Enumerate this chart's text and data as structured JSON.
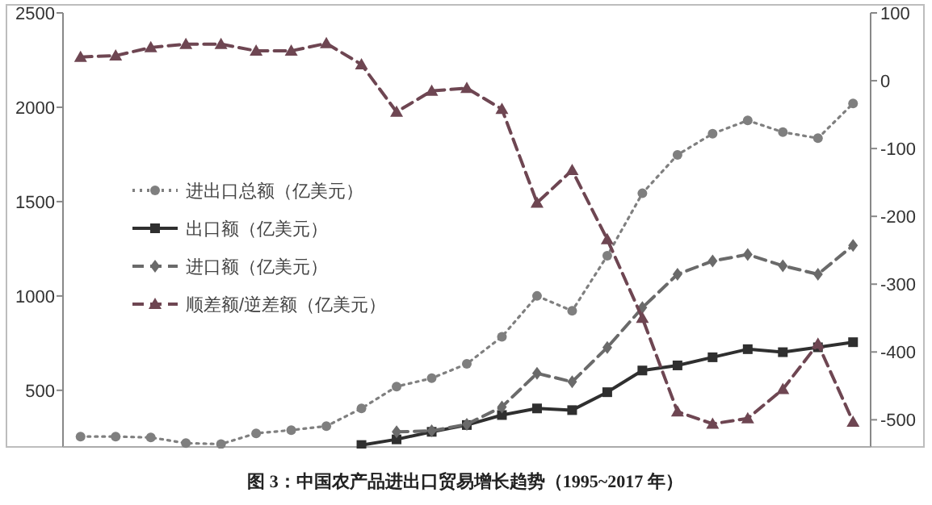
{
  "chart_data": {
    "type": "line",
    "title": "图 3：中国农产品进出口贸易增长趋势（1995~2017 年）",
    "categories": [
      null,
      null,
      null,
      null,
      null,
      null,
      null,
      null,
      null,
      null,
      null,
      null,
      null,
      null,
      null,
      null,
      null,
      null,
      null,
      null,
      null,
      null,
      null
    ],
    "ylim": [
      200,
      2500
    ],
    "yticks": [
      500,
      1000,
      1500,
      2000,
      2500
    ],
    "y2lim": [
      -540,
      100
    ],
    "y2ticks": [
      -500,
      -400,
      -300,
      -200,
      -100,
      0,
      100
    ],
    "grid": false,
    "legend": "left",
    "series": [
      {
        "name": "进出口总额（亿美元）",
        "color": "#7f7f7f",
        "line_style": "dotted",
        "marker": "circle",
        "values": [
          255,
          255,
          250,
          220,
          215,
          272,
          289,
          310,
          404,
          520,
          564,
          640,
          784,
          1000,
          921,
          1213,
          1544,
          1748,
          1860,
          1930,
          1868,
          1836,
          2020
        ]
      },
      {
        "name": "出口额（亿美元）",
        "color": "#2f2f2f",
        "line_style": "solid",
        "marker": "square",
        "values": [
          null,
          null,
          null,
          null,
          null,
          null,
          null,
          null,
          210,
          240,
          280,
          316,
          369,
          404,
          395,
          490,
          605,
          632,
          675,
          718,
          702,
          728,
          755
        ]
      },
      {
        "name": "进口额（亿美元）",
        "color": "#6a6a6a",
        "line_style": "dashed",
        "marker": "diamond",
        "values": [
          null,
          null,
          null,
          null,
          null,
          null,
          null,
          null,
          null,
          280,
          285,
          320,
          412,
          590,
          545,
          727,
          938,
          1115,
          1185,
          1220,
          1160,
          1115,
          1268
        ]
      },
      {
        "name": "顺差额/逆差额（亿美元）",
        "color": "#6e4652",
        "line_style": "dashed",
        "marker": "triangle",
        "axis": "y2",
        "values": [
          35,
          37,
          49,
          54,
          54,
          44,
          44,
          55,
          24,
          -46,
          -15,
          -11,
          -42,
          -180,
          -132,
          -234,
          -350,
          -488,
          -506,
          -498,
          -455,
          -388,
          -503
        ]
      }
    ]
  }
}
